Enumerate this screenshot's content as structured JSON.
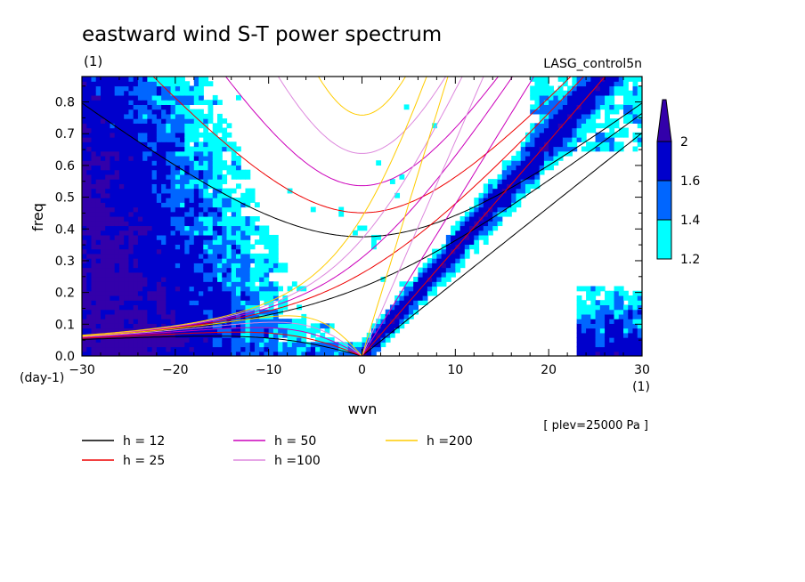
{
  "title": "eastward wind S-T power spectrum",
  "subtitle_units": "(1)",
  "run_name": "LASG_control5n",
  "annotation": "[ plev=25000 Pa ]",
  "chart_data": {
    "type": "heatmap",
    "xlabel": "wvn",
    "ylabel": "freq",
    "x_unit_label": "(1)",
    "y_unit_label": "(day-1)",
    "xlim": [
      -30,
      30
    ],
    "ylim": [
      0,
      0.88
    ],
    "xticks": [
      -30,
      -20,
      -10,
      0,
      10,
      20,
      30
    ],
    "yticks": [
      0.0,
      0.1,
      0.2,
      0.3,
      0.4,
      0.5,
      0.6,
      0.7,
      0.8
    ],
    "colorbar": {
      "levels": [
        1.2,
        1.4,
        1.6,
        2
      ],
      "labels": [
        "1.2",
        "1.4",
        "1.6",
        "2"
      ],
      "colors": [
        "#00ffff",
        "#0066ff",
        "#0000cc",
        "#3300aa"
      ]
    },
    "dispersion_curves": [
      {
        "label": "h = 12",
        "h": 12,
        "color": "#000000"
      },
      {
        "label": "h = 25",
        "h": 25,
        "color": "#ee0000"
      },
      {
        "label": "h = 50",
        "h": 50,
        "color": "#cc00bb"
      },
      {
        "label": "h =100",
        "h": 100,
        "color": "#dd88dd"
      },
      {
        "label": "h =200",
        "h": 200,
        "color": "#ffcc00"
      }
    ]
  }
}
